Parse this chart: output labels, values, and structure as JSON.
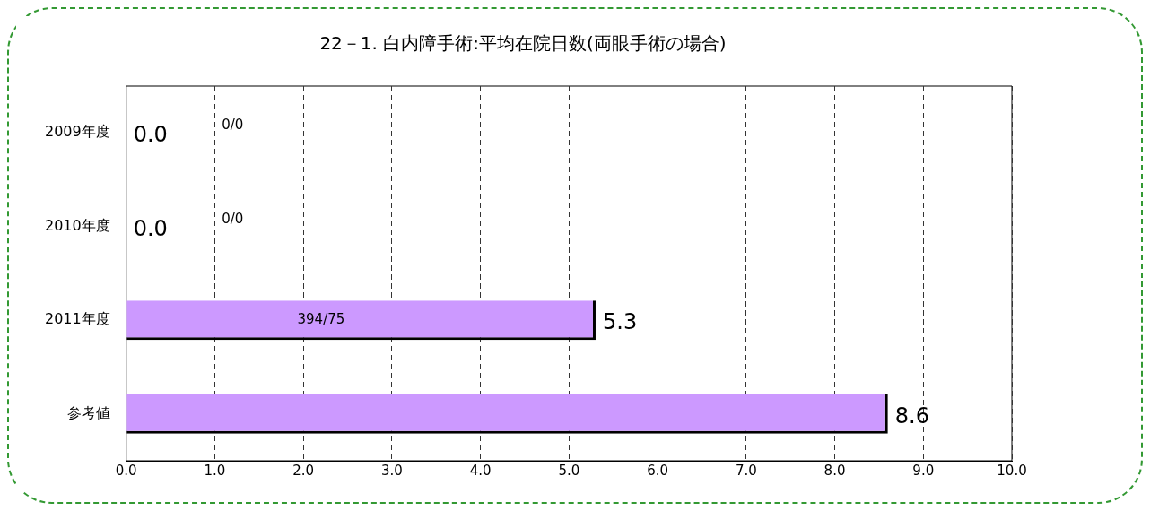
{
  "chart_data": {
    "type": "bar",
    "orientation": "horizontal",
    "title": "22－1. 白内障手術:平均在院日数(両眼手術の場合)",
    "categories": [
      "2009年度",
      "2010年度",
      "2011年度",
      "参考値"
    ],
    "values": [
      0,
      0,
      5.3,
      8.6
    ],
    "color": "#cc99ff",
    "value_labels": [
      "0.0",
      "0.0",
      "5.3",
      "8.6"
    ],
    "annotations": [
      "0/0",
      "0/0",
      "394/75"
    ],
    "xlim": [
      0,
      10
    ],
    "xticks": [
      {
        "value": 0,
        "label": "0.0"
      },
      {
        "value": 1,
        "label": "1.0"
      },
      {
        "value": 2,
        "label": "2.0"
      },
      {
        "value": 3,
        "label": "3.0"
      },
      {
        "value": 4,
        "label": "4.0"
      },
      {
        "value": 5,
        "label": "5.0"
      },
      {
        "value": 6,
        "label": "6.0"
      },
      {
        "value": 7,
        "label": "7.0"
      },
      {
        "value": 8,
        "label": "8.0"
      },
      {
        "value": 9,
        "label": "9.0"
      },
      {
        "value": 10,
        "label": "10.0"
      }
    ],
    "grid": "x",
    "legend": false
  }
}
